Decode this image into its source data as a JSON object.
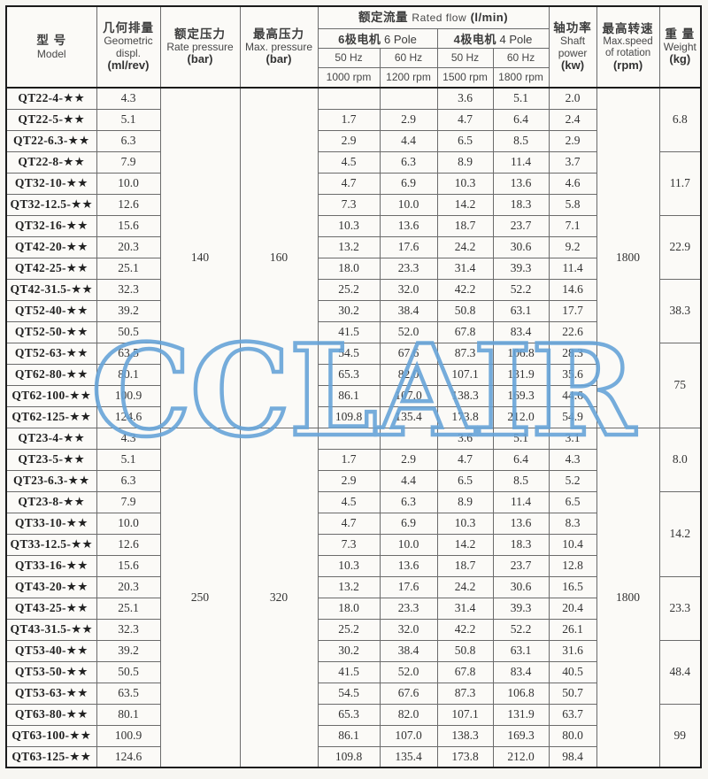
{
  "watermark": {
    "text": "CCLAIR",
    "color": "#67a4d8"
  },
  "table": {
    "header": {
      "model": {
        "zh": "型 号",
        "en": "Model"
      },
      "displacement": {
        "zh": "几何排量",
        "en_lines": [
          "Geometric",
          "displ."
        ],
        "unit": "(ml/rev)"
      },
      "rate_pressure": {
        "zh": "额定压力",
        "en_lines": [
          "Rate pressure"
        ],
        "unit": "(bar)"
      },
      "max_pressure": {
        "zh": "最高压力",
        "en_lines": [
          "Max. pressure"
        ],
        "unit": "(bar)"
      },
      "rated_flow": {
        "zh": "额定流量",
        "en": "Rated flow",
        "unit": "(l/min)"
      },
      "pole_groups": [
        {
          "zh": "6极电机",
          "en": "6 Pole"
        },
        {
          "zh": "4极电机",
          "en": "4 Pole"
        }
      ],
      "frequencies": [
        "50 Hz",
        "60 Hz",
        "50 Hz",
        "60 Hz"
      ],
      "speeds": [
        "1000 rpm",
        "1200 rpm",
        "1500 rpm",
        "1800 rpm"
      ],
      "shaft_power": {
        "zh": "轴功率",
        "en_lines": [
          "Shaft",
          "power"
        ],
        "unit": "(kw)"
      },
      "max_speed": {
        "zh": "最高转速",
        "en_lines": [
          "Max.speed",
          "of rotation"
        ],
        "unit": "(rpm)"
      },
      "weight": {
        "zh": "重 量",
        "en_lines": [
          "Weight"
        ],
        "unit": "(kg)"
      }
    },
    "groups": [
      {
        "rate_pressure": "140",
        "max_pressure": "160",
        "max_speed": "1800",
        "row_count": 16,
        "weights": [
          {
            "value": "6.8",
            "rows": 3
          },
          {
            "value": "11.7",
            "rows": 3
          },
          {
            "value": "22.9",
            "rows": 3
          },
          {
            "value": "38.3",
            "rows": 3
          },
          {
            "value": "75",
            "rows": 4
          }
        ]
      },
      {
        "rate_pressure": "250",
        "max_pressure": "320",
        "max_speed": "1800",
        "row_count": 16,
        "weights": [
          {
            "value": "8.0",
            "rows": 3
          },
          {
            "value": "14.2",
            "rows": 4
          },
          {
            "value": "23.3",
            "rows": 3
          },
          {
            "value": "48.4",
            "rows": 3
          },
          {
            "value": "99",
            "rows": 3
          }
        ]
      }
    ],
    "rows": [
      {
        "model": "QT22-4-★★",
        "displ": "4.3",
        "flow": [
          "",
          "",
          "3.6",
          "5.1"
        ],
        "kw": "2.0"
      },
      {
        "model": "QT22-5-★★",
        "displ": "5.1",
        "flow": [
          "1.7",
          "2.9",
          "4.7",
          "6.4"
        ],
        "kw": "2.4"
      },
      {
        "model": "QT22-6.3-★★",
        "displ": "6.3",
        "flow": [
          "2.9",
          "4.4",
          "6.5",
          "8.5"
        ],
        "kw": "2.9"
      },
      {
        "model": "QT22-8-★★",
        "displ": "7.9",
        "flow": [
          "4.5",
          "6.3",
          "8.9",
          "11.4"
        ],
        "kw": "3.7"
      },
      {
        "model": "QT32-10-★★",
        "displ": "10.0",
        "flow": [
          "4.7",
          "6.9",
          "10.3",
          "13.6"
        ],
        "kw": "4.6"
      },
      {
        "model": "QT32-12.5-★★",
        "displ": "12.6",
        "flow": [
          "7.3",
          "10.0",
          "14.2",
          "18.3"
        ],
        "kw": "5.8"
      },
      {
        "model": "QT32-16-★★",
        "displ": "15.6",
        "flow": [
          "10.3",
          "13.6",
          "18.7",
          "23.7"
        ],
        "kw": "7.1"
      },
      {
        "model": "QT42-20-★★",
        "displ": "20.3",
        "flow": [
          "13.2",
          "17.6",
          "24.2",
          "30.6"
        ],
        "kw": "9.2"
      },
      {
        "model": "QT42-25-★★",
        "displ": "25.1",
        "flow": [
          "18.0",
          "23.3",
          "31.4",
          "39.3"
        ],
        "kw": "11.4"
      },
      {
        "model": "QT42-31.5-★★",
        "displ": "32.3",
        "flow": [
          "25.2",
          "32.0",
          "42.2",
          "52.2"
        ],
        "kw": "14.6"
      },
      {
        "model": "QT52-40-★★",
        "displ": "39.2",
        "flow": [
          "30.2",
          "38.4",
          "50.8",
          "63.1"
        ],
        "kw": "17.7"
      },
      {
        "model": "QT52-50-★★",
        "displ": "50.5",
        "flow": [
          "41.5",
          "52.0",
          "67.8",
          "83.4"
        ],
        "kw": "22.6"
      },
      {
        "model": "QT52-63-★★",
        "displ": "63.5",
        "flow": [
          "54.5",
          "67.6",
          "87.3",
          "106.8"
        ],
        "kw": "28.3"
      },
      {
        "model": "QT62-80-★★",
        "displ": "80.1",
        "flow": [
          "65.3",
          "82.0",
          "107.1",
          "131.9"
        ],
        "kw": "35.6"
      },
      {
        "model": "QT62-100-★★",
        "displ": "100.9",
        "flow": [
          "86.1",
          "107.0",
          "138.3",
          "169.3"
        ],
        "kw": "44.6"
      },
      {
        "model": "QT62-125-★★",
        "displ": "124.6",
        "flow": [
          "109.8",
          "135.4",
          "173.8",
          "212.0"
        ],
        "kw": "54.9"
      },
      {
        "model": "QT23-4-★★",
        "displ": "4.3",
        "flow": [
          "",
          "",
          "3.6",
          "5.1"
        ],
        "kw": "3.1"
      },
      {
        "model": "QT23-5-★★",
        "displ": "5.1",
        "flow": [
          "1.7",
          "2.9",
          "4.7",
          "6.4"
        ],
        "kw": "4.3"
      },
      {
        "model": "QT23-6.3-★★",
        "displ": "6.3",
        "flow": [
          "2.9",
          "4.4",
          "6.5",
          "8.5"
        ],
        "kw": "5.2"
      },
      {
        "model": "QT23-8-★★",
        "displ": "7.9",
        "flow": [
          "4.5",
          "6.3",
          "8.9",
          "11.4"
        ],
        "kw": "6.5"
      },
      {
        "model": "QT33-10-★★",
        "displ": "10.0",
        "flow": [
          "4.7",
          "6.9",
          "10.3",
          "13.6"
        ],
        "kw": "8.3"
      },
      {
        "model": "QT33-12.5-★★",
        "displ": "12.6",
        "flow": [
          "7.3",
          "10.0",
          "14.2",
          "18.3"
        ],
        "kw": "10.4"
      },
      {
        "model": "QT33-16-★★",
        "displ": "15.6",
        "flow": [
          "10.3",
          "13.6",
          "18.7",
          "23.7"
        ],
        "kw": "12.8"
      },
      {
        "model": "QT43-20-★★",
        "displ": "20.3",
        "flow": [
          "13.2",
          "17.6",
          "24.2",
          "30.6"
        ],
        "kw": "16.5"
      },
      {
        "model": "QT43-25-★★",
        "displ": "25.1",
        "flow": [
          "18.0",
          "23.3",
          "31.4",
          "39.3"
        ],
        "kw": "20.4"
      },
      {
        "model": "QT43-31.5-★★",
        "displ": "32.3",
        "flow": [
          "25.2",
          "32.0",
          "42.2",
          "52.2"
        ],
        "kw": "26.1"
      },
      {
        "model": "QT53-40-★★",
        "displ": "39.2",
        "flow": [
          "30.2",
          "38.4",
          "50.8",
          "63.1"
        ],
        "kw": "31.6"
      },
      {
        "model": "QT53-50-★★",
        "displ": "50.5",
        "flow": [
          "41.5",
          "52.0",
          "67.8",
          "83.4"
        ],
        "kw": "40.5"
      },
      {
        "model": "QT53-63-★★",
        "displ": "63.5",
        "flow": [
          "54.5",
          "67.6",
          "87.3",
          "106.8"
        ],
        "kw": "50.7"
      },
      {
        "model": "QT63-80-★★",
        "displ": "80.1",
        "flow": [
          "65.3",
          "82.0",
          "107.1",
          "131.9"
        ],
        "kw": "63.7"
      },
      {
        "model": "QT63-100-★★",
        "displ": "100.9",
        "flow": [
          "86.1",
          "107.0",
          "138.3",
          "169.3"
        ],
        "kw": "80.0"
      },
      {
        "model": "QT63-125-★★",
        "displ": "124.6",
        "flow": [
          "109.8",
          "135.4",
          "173.8",
          "212.0"
        ],
        "kw": "98.4"
      }
    ]
  }
}
